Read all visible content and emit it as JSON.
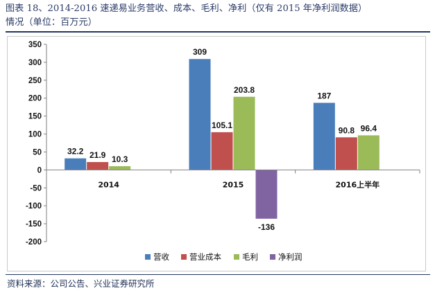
{
  "title_line1": "图表 18、2014-2016 速递易业务营收、成本、毛利、净利（仅有 2015 年净利润数据）",
  "title_line2": "情况（单位：百万元）",
  "source": "资料来源：公司公告、兴业证券研究所",
  "chart_data": {
    "type": "bar",
    "categories": [
      "2014",
      "2015",
      "2016上半年"
    ],
    "series": [
      {
        "name": "营收",
        "color": "#4a7ebb",
        "values": [
          32.2,
          309,
          187
        ],
        "labels": [
          "32.2",
          "309",
          "187"
        ]
      },
      {
        "name": "营业成本",
        "color": "#c0504d",
        "values": [
          21.9,
          105.1,
          90.8
        ],
        "labels": [
          "21.9",
          "105.1",
          "90.8"
        ]
      },
      {
        "name": "毛利",
        "color": "#9bbb59",
        "values": [
          10.3,
          203.8,
          96.4
        ],
        "labels": [
          "10.3",
          "203.8",
          "96.4"
        ]
      },
      {
        "name": "净利润",
        "color": "#8064a2",
        "values": [
          null,
          -136,
          null
        ],
        "labels": [
          "",
          "-136",
          ""
        ]
      }
    ],
    "ylim": [
      -200,
      350
    ],
    "yticks": [
      350,
      300,
      250,
      200,
      150,
      100,
      50,
      0,
      -50,
      -100,
      -150,
      -200
    ],
    "grid": false,
    "legend_position": "bottom"
  }
}
